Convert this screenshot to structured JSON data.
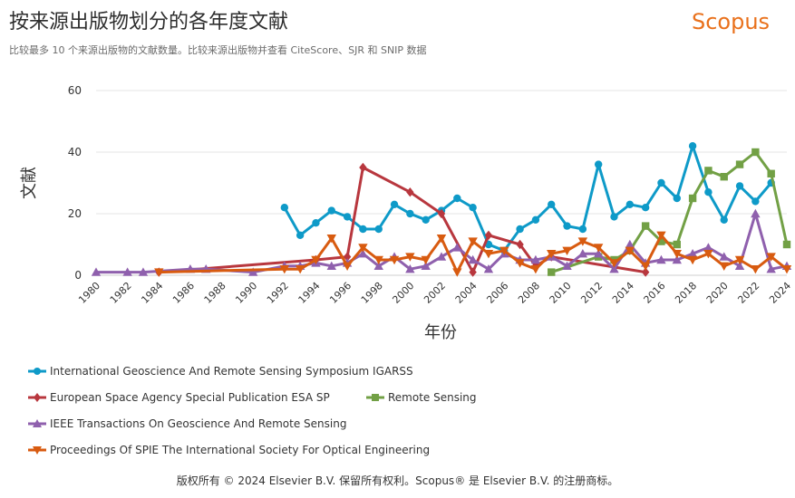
{
  "header": {
    "title": "按来源出版物划分的各年度文献",
    "subtitle": "比较最多 10 个来源出版物的文献数量。比较来源出版物并查看 CiteScore、SJR 和 SNIP 数据",
    "brand": "Scopus"
  },
  "footer": {
    "text": "版权所有 © 2024 Elsevier B.V. 保留所有权利。Scopus® 是 Elsevier B.V. 的注册商标。"
  },
  "colors": {
    "brand": "#e9711c"
  },
  "chart_data": {
    "type": "line",
    "xlabel": "年份",
    "ylabel": "文献",
    "xlim": [
      1980,
      2024
    ],
    "ylim": [
      0,
      60
    ],
    "x_ticks": [
      1980,
      1982,
      1984,
      1986,
      1988,
      1990,
      1992,
      1994,
      1996,
      1998,
      2000,
      2002,
      2004,
      2006,
      2008,
      2010,
      2012,
      2014,
      2016,
      2018,
      2020,
      2022,
      2024
    ],
    "y_ticks": [
      0,
      20,
      40,
      60
    ],
    "grid": true,
    "legend_position": "bottom-left",
    "series": [
      {
        "name": "International Geoscience And Remote Sensing Symposium IGARSS",
        "color": "#0e9ac8",
        "marker": "circle",
        "points": [
          [
            1992,
            22
          ],
          [
            1993,
            13
          ],
          [
            1994,
            17
          ],
          [
            1995,
            21
          ],
          [
            1996,
            19
          ],
          [
            1997,
            15
          ],
          [
            1998,
            15
          ],
          [
            1999,
            23
          ],
          [
            2000,
            20
          ],
          [
            2001,
            18
          ],
          [
            2002,
            21
          ],
          [
            2003,
            25
          ],
          [
            2004,
            22
          ],
          [
            2005,
            10
          ],
          [
            2006,
            8
          ],
          [
            2007,
            15
          ],
          [
            2008,
            18
          ],
          [
            2009,
            23
          ],
          [
            2010,
            16
          ],
          [
            2011,
            15
          ],
          [
            2012,
            36
          ],
          [
            2013,
            19
          ],
          [
            2014,
            23
          ],
          [
            2015,
            22
          ],
          [
            2016,
            30
          ],
          [
            2017,
            25
          ],
          [
            2018,
            42
          ],
          [
            2019,
            27
          ],
          [
            2020,
            18
          ],
          [
            2021,
            29
          ],
          [
            2022,
            24
          ],
          [
            2023,
            30
          ]
        ]
      },
      {
        "name": "European Space Agency Special Publication ESA SP",
        "color": "#b8373e",
        "marker": "diamond",
        "points": [
          [
            1984,
            1
          ],
          [
            1994,
            5
          ],
          [
            1996,
            6
          ],
          [
            1997,
            35
          ],
          [
            2000,
            27
          ],
          [
            2002,
            20
          ],
          [
            2004,
            1
          ],
          [
            2005,
            13
          ],
          [
            2007,
            10
          ],
          [
            2008,
            3
          ],
          [
            2009,
            6
          ],
          [
            2015,
            1
          ]
        ]
      },
      {
        "name": "Remote Sensing",
        "color": "#72a045",
        "marker": "square",
        "points": [
          [
            2009,
            1
          ],
          [
            2012,
            6
          ],
          [
            2013,
            5
          ],
          [
            2014,
            8
          ],
          [
            2015,
            16
          ],
          [
            2016,
            11
          ],
          [
            2017,
            10
          ],
          [
            2018,
            25
          ],
          [
            2019,
            34
          ],
          [
            2020,
            32
          ],
          [
            2021,
            36
          ],
          [
            2022,
            40
          ],
          [
            2023,
            33
          ],
          [
            2024,
            10
          ]
        ]
      },
      {
        "name": "IEEE Transactions On Geoscience And Remote Sensing",
        "color": "#8f60ad",
        "marker": "triangle-up",
        "points": [
          [
            1980,
            1
          ],
          [
            1982,
            1
          ],
          [
            1983,
            1
          ],
          [
            1986,
            2
          ],
          [
            1987,
            2
          ],
          [
            1990,
            1
          ],
          [
            1992,
            3
          ],
          [
            1993,
            3
          ],
          [
            1994,
            4
          ],
          [
            1995,
            3
          ],
          [
            1996,
            4
          ],
          [
            1997,
            7
          ],
          [
            1998,
            3
          ],
          [
            1999,
            6
          ],
          [
            2000,
            2
          ],
          [
            2001,
            3
          ],
          [
            2002,
            6
          ],
          [
            2003,
            9
          ],
          [
            2004,
            5
          ],
          [
            2005,
            2
          ],
          [
            2006,
            7
          ],
          [
            2007,
            5
          ],
          [
            2008,
            5
          ],
          [
            2009,
            6
          ],
          [
            2010,
            3
          ],
          [
            2011,
            7
          ],
          [
            2012,
            7
          ],
          [
            2013,
            2
          ],
          [
            2014,
            10
          ],
          [
            2015,
            4
          ],
          [
            2016,
            5
          ],
          [
            2017,
            5
          ],
          [
            2018,
            7
          ],
          [
            2019,
            9
          ],
          [
            2020,
            6
          ],
          [
            2021,
            3
          ],
          [
            2022,
            20
          ],
          [
            2023,
            2
          ],
          [
            2024,
            3
          ]
        ]
      },
      {
        "name": "Proceedings Of SPIE The International Society For Optical Engineering",
        "color": "#d85b10",
        "marker": "triangle-down",
        "points": [
          [
            1984,
            1
          ],
          [
            1992,
            2
          ],
          [
            1993,
            2
          ],
          [
            1994,
            5
          ],
          [
            1995,
            12
          ],
          [
            1996,
            3
          ],
          [
            1997,
            9
          ],
          [
            1998,
            5
          ],
          [
            1999,
            5
          ],
          [
            2000,
            6
          ],
          [
            2001,
            5
          ],
          [
            2002,
            12
          ],
          [
            2003,
            1
          ],
          [
            2004,
            11
          ],
          [
            2005,
            7
          ],
          [
            2006,
            8
          ],
          [
            2007,
            4
          ],
          [
            2008,
            2
          ],
          [
            2009,
            7
          ],
          [
            2010,
            8
          ],
          [
            2011,
            11
          ],
          [
            2012,
            9
          ],
          [
            2013,
            4
          ],
          [
            2014,
            8
          ],
          [
            2015,
            3
          ],
          [
            2016,
            13
          ],
          [
            2017,
            7
          ],
          [
            2018,
            5
          ],
          [
            2019,
            7
          ],
          [
            2020,
            3
          ],
          [
            2021,
            5
          ],
          [
            2022,
            2
          ],
          [
            2023,
            6
          ],
          [
            2024,
            2
          ]
        ]
      }
    ]
  }
}
